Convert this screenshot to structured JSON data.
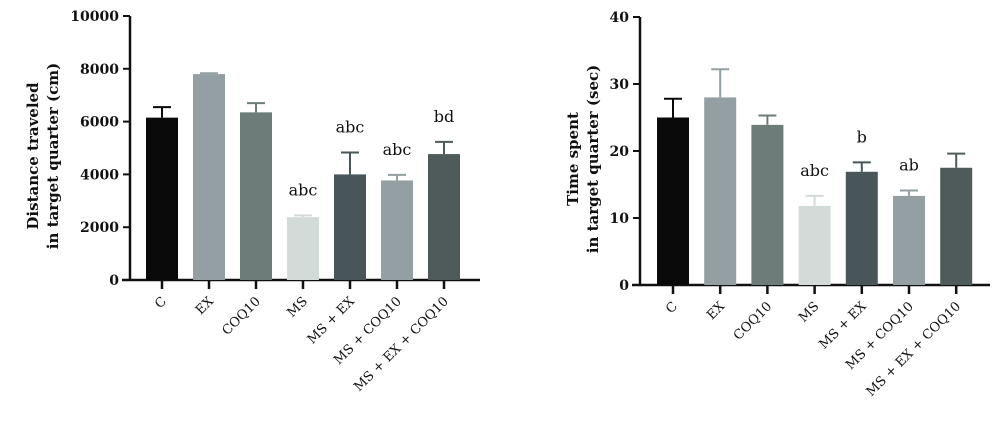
{
  "chart_data": [
    {
      "type": "bar",
      "ylabel": [
        "Distance traveled",
        "in target quarter (cm)"
      ],
      "xlabel": "",
      "ylim": [
        0,
        10000
      ],
      "yticks": [
        "0",
        "2000",
        "4000",
        "6000",
        "8000",
        "10000"
      ],
      "categories": [
        "C",
        "EX",
        "COQ10",
        "MS",
        "MS + EX",
        "MS + COQ10",
        "MS + EX + COQ10"
      ],
      "values": [
        6150,
        7800,
        6350,
        2380,
        4000,
        3770,
        4770
      ],
      "error_upper": [
        6550,
        7830,
        6700,
        2450,
        4830,
        3980,
        5230
      ],
      "annotations": [
        "",
        "",
        "",
        "abc",
        "abc",
        "abc",
        "bd"
      ],
      "colors": [
        "#0a0a0a",
        "#939fa2",
        "#6e7c79",
        "#d3dbd8",
        "#48565a",
        "#939fa2",
        "#4f5b5a"
      ],
      "grid": false
    },
    {
      "type": "bar",
      "ylabel": [
        "Time spent",
        "in target quarter (sec)"
      ],
      "xlabel": "",
      "ylim": [
        0,
        40
      ],
      "yticks": [
        "0",
        "10",
        "20",
        "30",
        "40"
      ],
      "categories": [
        "C",
        "EX",
        "COQ10",
        "MS",
        "MS + EX",
        "MS + COQ10",
        "MS + EX + COQ10"
      ],
      "values": [
        25,
        28,
        23.9,
        11.8,
        16.9,
        13.3,
        17.5
      ],
      "error_upper": [
        27.8,
        32.2,
        25.3,
        13.3,
        18.3,
        14.1,
        19.6
      ],
      "annotations": [
        "",
        "",
        "",
        "abc",
        "b",
        "ab",
        ""
      ],
      "colors": [
        "#0a0a0a",
        "#939fa2",
        "#6e7c79",
        "#d3dbd8",
        "#48565a",
        "#939fa2",
        "#4f5b5a"
      ],
      "grid": false
    }
  ]
}
